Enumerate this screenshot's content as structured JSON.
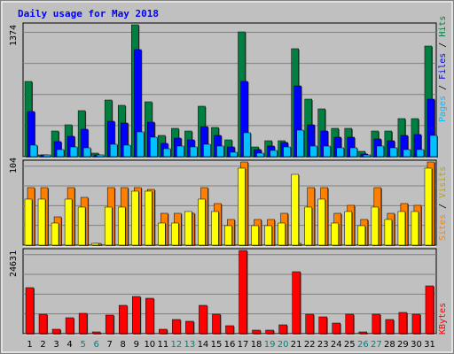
{
  "chart_data": [
    {
      "type": "bar",
      "title": "Daily usage for May 2018",
      "panel": "hits",
      "categories": [
        "1",
        "2",
        "3",
        "4",
        "5",
        "6",
        "7",
        "8",
        "9",
        "10",
        "11",
        "12",
        "13",
        "14",
        "15",
        "16",
        "17",
        "18",
        "19",
        "20",
        "21",
        "22",
        "23",
        "24",
        "25",
        "26",
        "27",
        "28",
        "29",
        "30",
        "31"
      ],
      "weekend_days": [
        "5",
        "6",
        "12",
        "13",
        "19",
        "20",
        "26",
        "27"
      ],
      "ymax_label": "1374",
      "ymax": 1374,
      "right_label_parts": [
        "Pages",
        "Files",
        "Hits"
      ],
      "series": [
        {
          "name": "Hits",
          "color": "#008040",
          "values": [
            785,
            0,
            265,
            335,
            483,
            37,
            592,
            532,
            1374,
            570,
            224,
            297,
            270,
            525,
            302,
            175,
            1297,
            102,
            165,
            165,
            1125,
            600,
            500,
            297,
            297,
            56,
            270,
            270,
            400,
            400,
            1150
          ]
        },
        {
          "name": "Files",
          "color": "#0000ff",
          "values": [
            470,
            0,
            156,
            210,
            290,
            20,
            370,
            348,
            1120,
            360,
            140,
            197,
            175,
            315,
            220,
            100,
            780,
            70,
            110,
            150,
            735,
            330,
            270,
            200,
            200,
            30,
            180,
            170,
            225,
            230,
            600
          ]
        },
        {
          "name": "Pages",
          "color": "#00c0ff",
          "values": [
            120,
            0,
            73,
            100,
            90,
            10,
            125,
            120,
            255,
            200,
            80,
            108,
            105,
            125,
            112,
            45,
            245,
            40,
            60,
            105,
            275,
            112,
            112,
            90,
            90,
            12,
            112,
            95,
            75,
            70,
            225
          ]
        }
      ]
    },
    {
      "type": "bar",
      "panel": "visits",
      "ymax_label": "104",
      "ymax": 104,
      "right_label_parts": [
        "Sites",
        "Visits"
      ],
      "series": [
        {
          "name": "Visits",
          "color": "#ff8000",
          "values": [
            72,
            72,
            35,
            72,
            60,
            0,
            72,
            72,
            72,
            70,
            40,
            40,
            40,
            72,
            52,
            32,
            104,
            32,
            32,
            40,
            0,
            72,
            72,
            40,
            50,
            32,
            72,
            40,
            52,
            50,
            104
          ]
        },
        {
          "name": "Sites",
          "color": "#ffff00",
          "values": [
            58,
            58,
            28,
            58,
            48,
            0,
            48,
            48,
            68,
            68,
            28,
            28,
            42,
            58,
            42,
            24,
            96,
            24,
            24,
            28,
            88,
            48,
            58,
            28,
            42,
            24,
            48,
            32,
            42,
            42,
            96
          ]
        }
      ]
    },
    {
      "type": "bar",
      "panel": "kbytes",
      "ymax_label": "24631",
      "ymax": 24631,
      "right_label_parts": [
        "KBytes"
      ],
      "series": [
        {
          "name": "KBytes",
          "color": "#ff0000",
          "values": [
            13500,
            5800,
            1300,
            4600,
            6000,
            0,
            5500,
            8500,
            11000,
            10600,
            1300,
            4300,
            3600,
            8500,
            5800,
            2300,
            24631,
            1100,
            1100,
            2600,
            18300,
            5800,
            5000,
            3100,
            5800,
            0,
            5800,
            4100,
            6400,
            5700,
            14200
          ]
        }
      ]
    }
  ]
}
